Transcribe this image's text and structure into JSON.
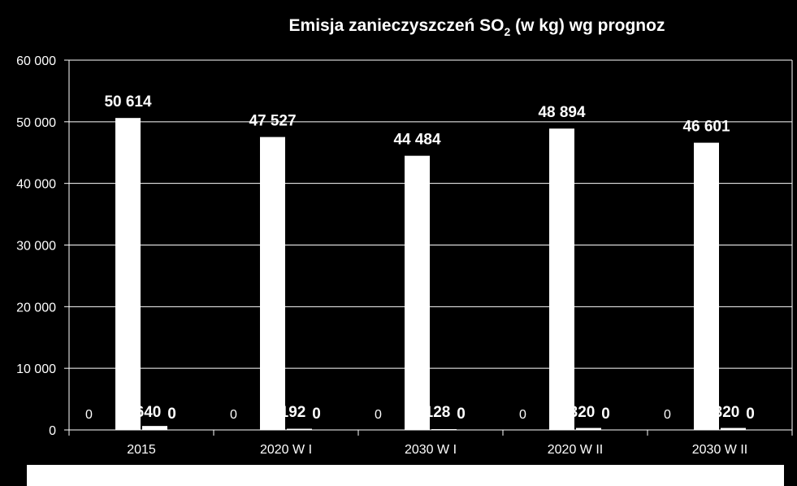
{
  "chart_data": {
    "type": "bar",
    "title": "Emisja zanieczyszczeń SO",
    "title_subscript": "2",
    "title_suffix": " (w kg) wg prognoz",
    "categories": [
      "2015",
      "2020 W I",
      "2030 W I",
      "2020 W II",
      "2030 W II"
    ],
    "series": [
      {
        "values": [
          0,
          0,
          0,
          0,
          0
        ],
        "labels": [
          "0",
          "0",
          "0",
          "0",
          "0"
        ]
      },
      {
        "values": [
          50614,
          47527,
          44484,
          48894,
          46601
        ],
        "labels": [
          "50 614",
          "47 527",
          "44 484",
          "48 894",
          "46 601"
        ]
      },
      {
        "values": [
          640,
          192,
          128,
          320,
          320
        ],
        "labels": [
          "640",
          "192",
          "128",
          "320",
          "320"
        ]
      },
      {
        "values": [
          0,
          0,
          0,
          0,
          0
        ],
        "labels": [
          "0",
          "0",
          "0",
          "0",
          "0"
        ]
      }
    ],
    "yticks": [
      "0",
      "10 000",
      "20 000",
      "30 000",
      "40 000",
      "50 000",
      "60 000"
    ],
    "ylim": [
      0,
      60000
    ],
    "grid": true,
    "legend": "bottom",
    "colors": {
      "background": "#000000",
      "bars": "#ffffff",
      "grid": "#ffffff",
      "legend_box": "#ffffff"
    }
  }
}
